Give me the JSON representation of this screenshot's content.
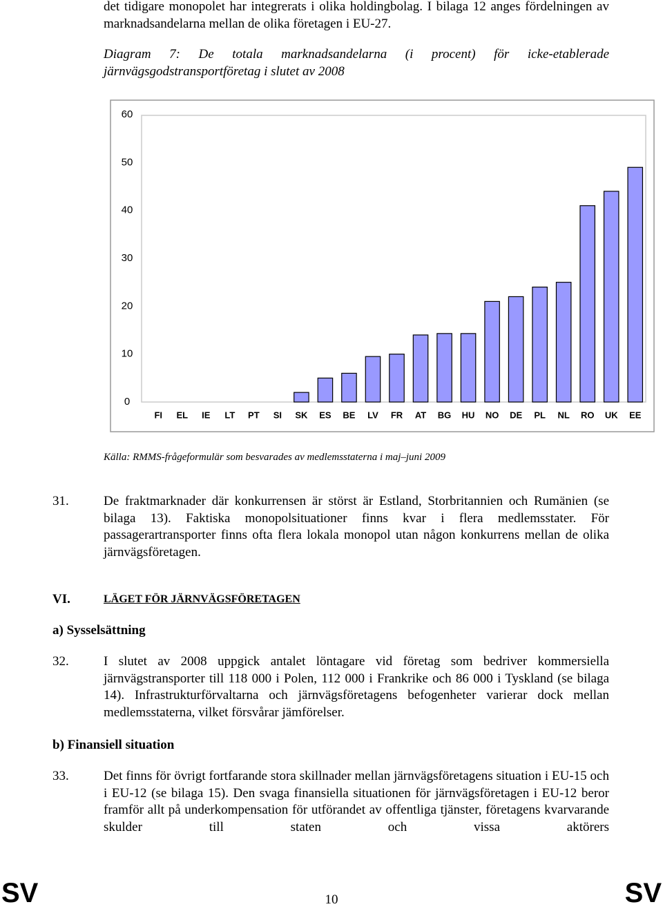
{
  "intro": "det tidigare monopolet har integrerats i olika holdingbolag. I bilaga 12 anges fördelningen av marknadsandelarna mellan de olika företagen i EU-27.",
  "caption": "Diagram 7: De totala marknadsandelarna (i procent) för icke-etablerade järnvägsgodstransportföretag i slutet av 2008",
  "chart_data": {
    "type": "bar",
    "categories": [
      "FI",
      "EL",
      "IE",
      "LT",
      "PT",
      "SI",
      "SK",
      "ES",
      "BE",
      "LV",
      "FR",
      "AT",
      "BG",
      "HU",
      "NO",
      "DE",
      "PL",
      "NL",
      "RO",
      "UK",
      "EE"
    ],
    "values": [
      0,
      0,
      0,
      0,
      0,
      0,
      2,
      5,
      6,
      9.5,
      10,
      14,
      14.3,
      14.3,
      21,
      22,
      24,
      25,
      41,
      44,
      49
    ],
    "color": "#9999ff",
    "ylim": [
      0,
      60
    ],
    "yticks": [
      0,
      10,
      20,
      30,
      40,
      50,
      60
    ],
    "grid": false
  },
  "source": "Källa: RMMS-frågeformulär som besvarades av medlemsstaterna i maj–juni 2009",
  "paragraph_31": {
    "number": "31.",
    "text": "De fraktmarknader där konkurrensen är störst är Estland, Storbritannien och Rumänien (se bilaga 13). Faktiska monopolsituationer finns kvar i flera medlemsstater. För passagerartransporter finns ofta flera lokala monopol utan någon konkurrens mellan de olika järnvägsföretagen."
  },
  "section": {
    "number": "VI.",
    "title": "LÄGET FÖR JÄRNVÄGSFÖRETAGEN"
  },
  "subsection_a": "a) Sysselsättning",
  "paragraph_32": {
    "number": "32.",
    "text": "I slutet av 2008 uppgick antalet löntagare vid företag som bedriver kommersiella järnvägstransporter till 118 000 i Polen, 112 000 i Frankrike och 86 000 i Tyskland (se bilaga 14). Infrastrukturförvaltarna och järnvägsföretagens befogenheter varierar dock mellan medlemsstaterna, vilket försvårar jämförelser."
  },
  "subsection_b": "b) Finansiell situation",
  "paragraph_33": {
    "number": "33.",
    "text": "Det finns för övrigt fortfarande stora skillnader mellan järnvägsföretagens situation i EU-15 och i EU-12 (se bilaga 15). Den svaga finansiella situationen för järnvägsföretagen i EU-12 beror framför allt på underkompensation för utförandet av offentliga tjänster, företagens kvarvarande skulder till staten och vissa aktörers"
  },
  "footer": {
    "left": "SV",
    "page": "10",
    "right": "SV"
  }
}
